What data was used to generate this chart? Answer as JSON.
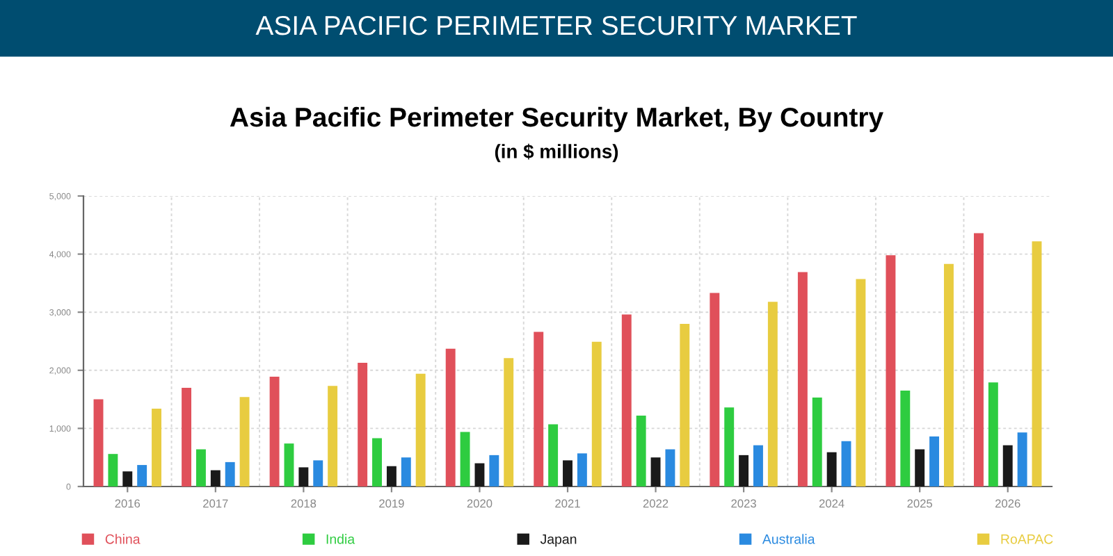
{
  "chart_data": {
    "type": "bar",
    "title": "Asia Pacific Perimeter Security Market, By Country",
    "subtitle": "(in $ millions)",
    "annotations": [
      "ASIA PACIFIC PERIMETER SECURITY MARKET"
    ],
    "categories": [
      "2016",
      "2017",
      "2018",
      "2019",
      "2020",
      "2021",
      "2022",
      "2023",
      "2024",
      "2025",
      "2026"
    ],
    "series": [
      {
        "name": "China",
        "color": "#e0505a",
        "values": [
          1500,
          1700,
          1890,
          2130,
          2370,
          2660,
          2960,
          3330,
          3690,
          3980,
          4360
        ]
      },
      {
        "name": "India",
        "color": "#2ecc40",
        "values": [
          560,
          640,
          740,
          830,
          940,
          1070,
          1220,
          1360,
          1530,
          1650,
          1790
        ]
      },
      {
        "name": "Japan",
        "color": "#1a1a1a",
        "values": [
          260,
          280,
          330,
          350,
          400,
          450,
          500,
          540,
          590,
          640,
          710
        ]
      },
      {
        "name": "Australia",
        "color": "#2a8ae0",
        "values": [
          370,
          420,
          450,
          500,
          540,
          570,
          640,
          710,
          780,
          860,
          930
        ]
      },
      {
        "name": "RoAPAC",
        "color": "#e8cc40",
        "values": [
          1340,
          1540,
          1730,
          1940,
          2210,
          2490,
          2800,
          3180,
          3570,
          3830,
          4220
        ]
      }
    ],
    "ylim": [
      0,
      5000
    ],
    "yticks": [
      0,
      {
        "value": 1000,
        "label": "1,000"
      },
      {
        "value": 2000,
        "label": "2,000"
      },
      {
        "value": 3000,
        "label": "3,000"
      },
      {
        "value": 4000,
        "label": "4,000"
      },
      {
        "value": 5000,
        "label": "5,000"
      }
    ],
    "grid": true,
    "legend": "bottom"
  }
}
